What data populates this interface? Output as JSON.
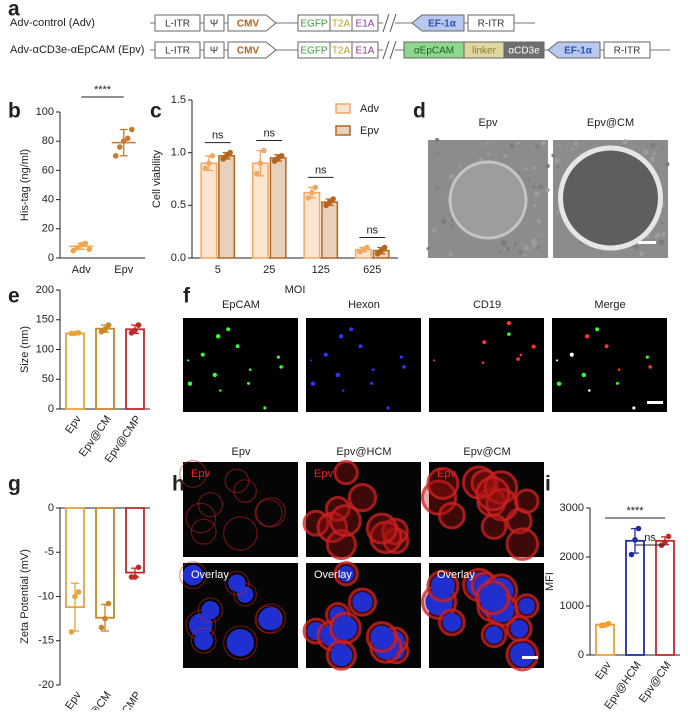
{
  "panel_letters": [
    "a",
    "b",
    "c",
    "d",
    "e",
    "f",
    "g",
    "h",
    "i"
  ],
  "construct": {
    "rows": [
      {
        "name": "Adv-control (Adv)",
        "elements": [
          {
            "label": "L-ITR",
            "shape": "box",
            "fill": "#fff",
            "color": "#333"
          },
          {
            "label": "Ψ",
            "shape": "box",
            "fill": "#fff",
            "color": "#333"
          },
          {
            "label": "CMV",
            "shape": "arrow-right",
            "fill": "#fff",
            "color": "#b5651d"
          },
          {
            "label": "EGFP",
            "shape": "box",
            "fill": "#fff",
            "color": "#3a9a3a"
          },
          {
            "label": "T2A",
            "shape": "box",
            "fill": "#fff",
            "color": "#b8a020"
          },
          {
            "label": "E1A",
            "shape": "box",
            "fill": "#fff",
            "color": "#8a3a9a"
          },
          {
            "label": "EF-1α",
            "shape": "arrow-left",
            "fill": "#b8c8ee",
            "color": "#2a50b0"
          },
          {
            "label": "R-ITR",
            "shape": "box",
            "fill": "#fff",
            "color": "#333"
          }
        ]
      },
      {
        "name": "Adv-αCD3e-αEpCAM (Epv)",
        "elements": [
          {
            "label": "L-ITR",
            "shape": "box",
            "fill": "#fff",
            "color": "#333"
          },
          {
            "label": "Ψ",
            "shape": "box",
            "fill": "#fff",
            "color": "#333"
          },
          {
            "label": "CMV",
            "shape": "arrow-right",
            "fill": "#fff",
            "color": "#b5651d"
          },
          {
            "label": "EGFP",
            "shape": "box",
            "fill": "#fff",
            "color": "#3a9a3a"
          },
          {
            "label": "T2A",
            "shape": "box",
            "fill": "#fff",
            "color": "#b8a020"
          },
          {
            "label": "E1A",
            "shape": "box",
            "fill": "#fff",
            "color": "#8a3a9a"
          },
          {
            "label": "αEpCAM",
            "shape": "box",
            "fill": "#8fd68f",
            "color": "#1f5f1f"
          },
          {
            "label": "linker",
            "shape": "box",
            "fill": "#e0d6a0",
            "color": "#8a7a30"
          },
          {
            "label": "αCD3e",
            "shape": "box",
            "fill": "#6e6e6e",
            "color": "#fff"
          },
          {
            "label": "EF-1α",
            "shape": "arrow-left",
            "fill": "#b8c8ee",
            "color": "#2a50b0"
          },
          {
            "label": "R-ITR",
            "shape": "box",
            "fill": "#fff",
            "color": "#333"
          }
        ]
      }
    ]
  },
  "images": {
    "d": {
      "titles": [
        "Epv",
        "Epv@CM"
      ]
    },
    "f": {
      "titles": [
        "EpCAM",
        "Hexon",
        "CD19",
        "Merge"
      ]
    },
    "h": {
      "titles": [
        "Epv",
        "Epv@HCM",
        "Epv@CM"
      ],
      "row_labels": [
        "Epv",
        "Overlay"
      ]
    }
  },
  "chart_data": [
    {
      "type": "dotplot",
      "y_label": "His-tag (ng/ml)",
      "categories": [
        "Adv",
        "Epv"
      ],
      "values": [
        8,
        79
      ],
      "errors": [
        2,
        9
      ],
      "points": [
        [
          5,
          7,
          9,
          10,
          6
        ],
        [
          70,
          76,
          80,
          82,
          88
        ]
      ],
      "colors": [
        "#f0a64a",
        "#c97a2a"
      ],
      "ylim": [
        0,
        100
      ],
      "yticks": [
        0,
        20,
        40,
        60,
        80,
        100
      ],
      "annotations": [
        {
          "label": "****",
          "between": [
            "Adv",
            "Epv"
          ]
        }
      ]
    },
    {
      "type": "bar",
      "y_label": "Cell viability",
      "x_label": "MOI",
      "categories": [
        "5",
        "25",
        "125",
        "625"
      ],
      "series": [
        {
          "name": "Adv",
          "color": "#f0a868",
          "values": [
            0.9,
            0.9,
            0.62,
            0.08
          ],
          "errors": [
            0.07,
            0.12,
            0.05,
            0.02
          ],
          "points": [
            [
              0.85,
              0.9,
              0.97
            ],
            [
              0.8,
              0.9,
              1.02
            ],
            [
              0.57,
              0.62,
              0.67
            ],
            [
              0.06,
              0.08,
              0.1
            ]
          ]
        },
        {
          "name": "Epv",
          "color": "#b5651d",
          "values": [
            0.97,
            0.95,
            0.53,
            0.07
          ],
          "errors": [
            0.03,
            0.03,
            0.03,
            0.03
          ],
          "points": [
            [
              0.94,
              0.97,
              1.0
            ],
            [
              0.92,
              0.95,
              0.97
            ],
            [
              0.5,
              0.53,
              0.56
            ],
            [
              0.04,
              0.07,
              0.1
            ]
          ]
        }
      ],
      "ylim": [
        0,
        1.5
      ],
      "yticks": [
        {
          "value": 0,
          "label": "0.0"
        },
        0.5,
        {
          "value": 1,
          "label": "1.0"
        },
        1.5
      ],
      "annotations": [
        {
          "label": "ns",
          "category": "5"
        },
        {
          "label": "ns",
          "category": "25"
        },
        {
          "label": "ns",
          "category": "125"
        },
        {
          "label": "ns",
          "category": "625"
        }
      ]
    },
    {
      "type": "bar",
      "y_label": "Size (nm)",
      "categories": [
        "Epv",
        "Epv@CM",
        "Epv@CMP"
      ],
      "values": [
        127,
        135,
        134
      ],
      "errors": [
        1,
        6,
        7
      ],
      "points": [
        [
          127,
          127,
          128
        ],
        [
          130,
          134,
          141
        ],
        [
          128,
          132,
          141
        ]
      ],
      "colors": [
        "#e8a33a",
        "#c8862a",
        "#c0282d"
      ],
      "ylim": [
        0,
        200
      ],
      "yticks": [
        0,
        50,
        100,
        150,
        200
      ]
    },
    {
      "type": "bar",
      "y_label": "Zeta Potential (mV)",
      "categories": [
        "Epv",
        "Epv@CM",
        "Epv@CMP"
      ],
      "values": [
        -11.2,
        -12.4,
        -7.3
      ],
      "errors": [
        2.7,
        1.5,
        0.5
      ],
      "points": [
        [
          -14,
          -10,
          -9.5
        ],
        [
          -13.5,
          -12.5,
          -10.8
        ],
        [
          -7.8,
          -7.8,
          -6.7
        ]
      ],
      "colors": [
        "#e8a33a",
        "#c8862a",
        "#c0282d"
      ],
      "ylim": [
        -20,
        0
      ],
      "yticks": [
        -20,
        -15,
        -10,
        -5,
        0
      ]
    },
    {
      "type": "bar",
      "y_label": "MFI",
      "categories": [
        "Epv",
        "Epv@HCM",
        "Epv@CM"
      ],
      "values": [
        620,
        2330,
        2330
      ],
      "errors": [
        30,
        250,
        80
      ],
      "points": [
        [
          600,
          610,
          640
        ],
        [
          2050,
          2350,
          2580
        ],
        [
          2240,
          2300,
          2420
        ]
      ],
      "colors": [
        "#f0a030",
        "#1f2f9c",
        "#c0282d"
      ],
      "ylim": [
        0,
        3000
      ],
      "yticks": [
        0,
        1000,
        2000,
        3000
      ],
      "annotations": [
        {
          "label": "****",
          "between": [
            "Epv",
            "Epv@CM"
          ]
        },
        {
          "label": "ns",
          "between": [
            "Epv@HCM",
            "Epv@CM"
          ]
        }
      ]
    }
  ]
}
